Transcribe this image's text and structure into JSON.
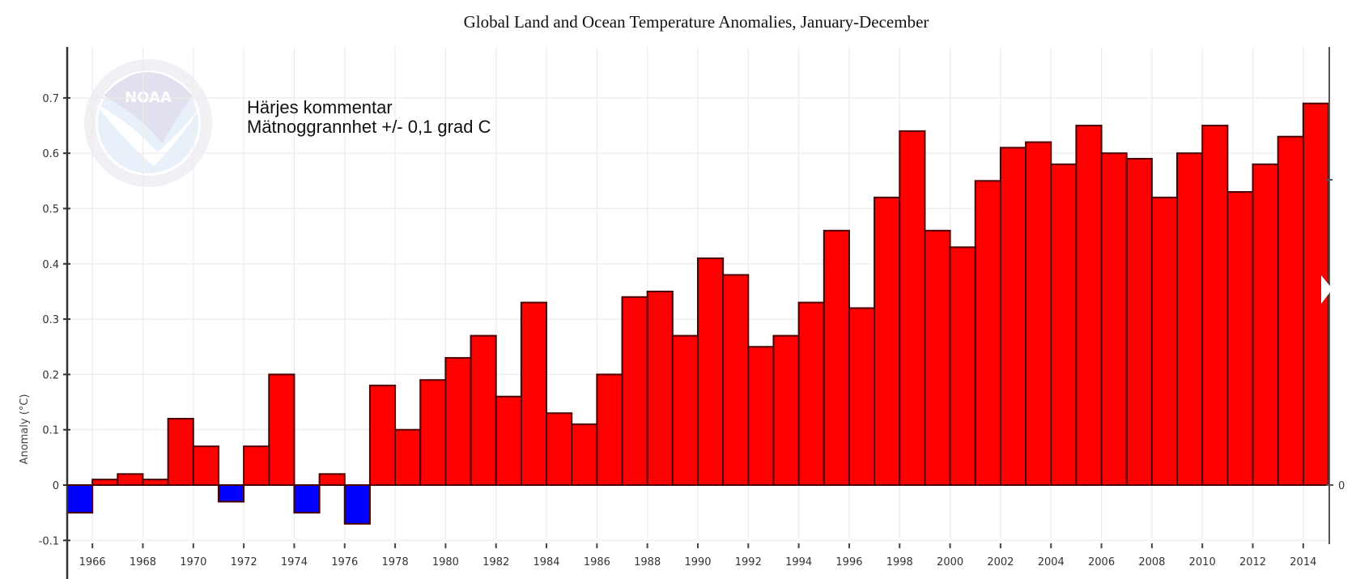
{
  "chart_data": {
    "type": "bar",
    "title": "Global Land and Ocean Temperature Anomalies, January-December",
    "xlabel": "",
    "ylabel": "Anomaly (°C)",
    "ylim": [
      -0.1,
      0.7
    ],
    "yticks": [
      "-0.1",
      "0",
      "0.1",
      "0.2",
      "0.3",
      "0.4",
      "0.5",
      "0.6",
      "0.7"
    ],
    "right_axis_ticks": [
      "0"
    ],
    "xticks": [
      "1966",
      "1968",
      "1970",
      "1972",
      "1974",
      "1976",
      "1978",
      "1980",
      "1982",
      "1984",
      "1986",
      "1988",
      "1990",
      "1992",
      "1994",
      "1996",
      "1998",
      "2000",
      "2002",
      "2004",
      "2006",
      "2008",
      "2010",
      "2012",
      "2014"
    ],
    "grid": true,
    "colors": {
      "positive": "#ff0000",
      "negative": "#0000ff"
    },
    "annotation": [
      "Härjes kommentar",
      "Mätnoggrannhet +/- 0,1 grad C"
    ],
    "logo": "NOAA",
    "categories": [
      "1965",
      "1966",
      "1967",
      "1968",
      "1969",
      "1970",
      "1971",
      "1972",
      "1973",
      "1974",
      "1975",
      "1976",
      "1977",
      "1978",
      "1979",
      "1980",
      "1981",
      "1982",
      "1983",
      "1984",
      "1985",
      "1986",
      "1987",
      "1988",
      "1989",
      "1990",
      "1991",
      "1992",
      "1993",
      "1994",
      "1995",
      "1996",
      "1997",
      "1998",
      "1999",
      "2000",
      "2001",
      "2002",
      "2003",
      "2004",
      "2005",
      "2006",
      "2007",
      "2008",
      "2009",
      "2010",
      "2011",
      "2012",
      "2013",
      "2014"
    ],
    "values": [
      -0.05,
      0.01,
      0.02,
      0.01,
      0.12,
      0.07,
      -0.03,
      0.07,
      0.2,
      -0.05,
      0.02,
      -0.07,
      0.18,
      0.1,
      0.19,
      0.23,
      0.27,
      0.16,
      0.33,
      0.13,
      0.11,
      0.2,
      0.34,
      0.35,
      0.27,
      0.41,
      0.38,
      0.25,
      0.27,
      0.33,
      0.46,
      0.32,
      0.52,
      0.64,
      0.46,
      0.43,
      0.55,
      0.61,
      0.62,
      0.58,
      0.65,
      0.6,
      0.59,
      0.52,
      0.6,
      0.65,
      0.53,
      0.58,
      0.63,
      0.69
    ]
  }
}
